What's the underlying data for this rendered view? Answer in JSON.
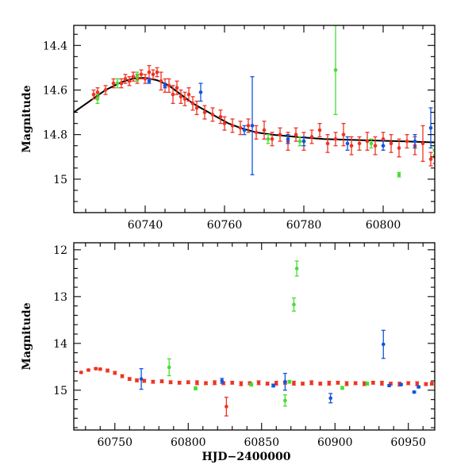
{
  "chart_data": [
    {
      "type": "scatter",
      "panel": "top",
      "title": "",
      "xlabel": "",
      "ylabel": "Magnitude",
      "xlim": [
        60722,
        60813
      ],
      "ylim": [
        15.15,
        14.31
      ],
      "x_ticks": [
        60740,
        60760,
        60780,
        60800
      ],
      "x_tick_labels": [
        "60740",
        "60760",
        "60780",
        "60800"
      ],
      "y_ticks": [
        14.4,
        14.6,
        14.8,
        15.0
      ],
      "y_tick_labels": [
        "14.4",
        "14.6",
        "14.8",
        "15"
      ],
      "colors": {
        "red": "#ee3322",
        "green": "#44dd33",
        "blue": "#1155dd",
        "model": "#000000"
      },
      "model_curve": {
        "name": "model",
        "x": [
          60722,
          60726,
          60730,
          60734,
          60737,
          60740,
          60743,
          60746,
          60749,
          60752,
          60755,
          60758,
          60761,
          60764,
          60768,
          60772,
          60778,
          60785,
          60795,
          60805,
          60813
        ],
        "y": [
          14.7,
          14.65,
          14.6,
          14.565,
          14.548,
          14.545,
          14.556,
          14.58,
          14.62,
          14.66,
          14.69,
          14.72,
          14.75,
          14.77,
          14.79,
          14.8,
          14.81,
          14.82,
          14.825,
          14.83,
          14.835
        ]
      },
      "series": [
        {
          "name": "red",
          "color": "red",
          "x": [
            60727,
            60728,
            60730,
            60732,
            60734,
            60735,
            60736,
            60737,
            60738,
            60739,
            60740,
            60741,
            60742,
            60743,
            60744,
            60745,
            60746,
            60747,
            60748,
            60749,
            60750,
            60751,
            60752,
            60753,
            60755,
            60757,
            60759,
            60760,
            60762,
            60764,
            60766,
            60768,
            60770,
            60772,
            60774,
            60776,
            60778,
            60780,
            60782,
            60784,
            60786,
            60788,
            60790,
            60792,
            60794,
            60796,
            60798,
            60800,
            60802,
            60804,
            60806,
            60808,
            60810,
            60812,
            60813
          ],
          "y": [
            14.62,
            14.61,
            14.6,
            14.57,
            14.57,
            14.55,
            14.56,
            14.54,
            14.55,
            14.53,
            14.55,
            14.52,
            14.53,
            14.52,
            14.56,
            14.58,
            14.58,
            14.62,
            14.59,
            14.63,
            14.64,
            14.62,
            14.66,
            14.68,
            14.7,
            14.71,
            14.72,
            14.75,
            14.76,
            14.77,
            14.76,
            14.79,
            14.78,
            14.82,
            14.8,
            14.83,
            14.8,
            14.83,
            14.81,
            14.78,
            14.84,
            14.82,
            14.8,
            14.85,
            14.84,
            14.83,
            14.85,
            14.82,
            14.84,
            14.86,
            14.83,
            14.85,
            14.84,
            14.91,
            14.9
          ],
          "err": [
            0.02,
            0.02,
            0.02,
            0.02,
            0.02,
            0.02,
            0.02,
            0.02,
            0.02,
            0.02,
            0.02,
            0.03,
            0.02,
            0.02,
            0.04,
            0.03,
            0.03,
            0.04,
            0.03,
            0.03,
            0.03,
            0.03,
            0.03,
            0.03,
            0.03,
            0.03,
            0.03,
            0.03,
            0.03,
            0.03,
            0.03,
            0.03,
            0.04,
            0.03,
            0.03,
            0.04,
            0.03,
            0.04,
            0.03,
            0.03,
            0.04,
            0.03,
            0.05,
            0.04,
            0.03,
            0.04,
            0.04,
            0.03,
            0.04,
            0.04,
            0.03,
            0.04,
            0.08,
            0.03,
            0.03
          ]
        },
        {
          "name": "green",
          "color": "green",
          "x": [
            60728,
            60733,
            60738,
            60771,
            60779,
            60788,
            60797,
            60804,
            60813
          ],
          "y": [
            14.64,
            14.57,
            14.54,
            14.82,
            14.83,
            14.51,
            14.84,
            14.98,
            14.87
          ],
          "err": [
            0.02,
            0.02,
            0.02,
            0.02,
            0.02,
            0.2,
            0.02,
            0.01,
            0.02
          ]
        },
        {
          "name": "blue",
          "color": "blue",
          "x": [
            60741,
            60745,
            60754,
            60765,
            60767,
            60776,
            60780,
            60791,
            60800,
            60808,
            60812
          ],
          "y": [
            14.56,
            14.58,
            14.61,
            14.78,
            14.76,
            14.82,
            14.83,
            14.84,
            14.85,
            14.83,
            14.77
          ],
          "err": [
            0.01,
            0.01,
            0.04,
            0.02,
            0.22,
            0.02,
            0.02,
            0.03,
            0.02,
            0.03,
            0.09
          ]
        }
      ]
    },
    {
      "type": "scatter",
      "panel": "bottom",
      "title": "",
      "xlabel": "HJD−2400000",
      "ylabel": "Magnitude",
      "xlim": [
        60722,
        60968
      ],
      "ylim": [
        15.85,
        11.85
      ],
      "x_ticks": [
        60750,
        60800,
        60850,
        60900,
        60950
      ],
      "x_tick_labels": [
        "60750",
        "60800",
        "60850",
        "60900",
        "60950"
      ],
      "y_ticks": [
        12,
        13,
        14,
        15
      ],
      "y_tick_labels": [
        "12",
        "13",
        "14",
        "15"
      ],
      "colors": {
        "red": "#ee3322",
        "green": "#44dd33",
        "blue": "#1155dd"
      },
      "series": [
        {
          "name": "red",
          "color": "red",
          "x": [
            60727,
            60732,
            60737,
            60740,
            60745,
            60750,
            60755,
            60760,
            60765,
            60770,
            60776,
            60782,
            60788,
            60794,
            60800,
            60806,
            60812,
            60818,
            60824,
            60826,
            60830,
            60836,
            60842,
            60848,
            60854,
            60860,
            60866,
            60872,
            60878,
            60884,
            60890,
            60896,
            60902,
            60908,
            60914,
            60920,
            60926,
            60932,
            60938,
            60944,
            60950,
            60956,
            60962,
            60966
          ],
          "y": [
            14.62,
            14.57,
            14.54,
            14.55,
            14.58,
            14.63,
            14.7,
            14.76,
            14.79,
            14.8,
            14.82,
            14.81,
            14.83,
            14.84,
            14.83,
            14.84,
            14.85,
            14.84,
            14.85,
            15.35,
            14.84,
            14.86,
            14.85,
            14.84,
            14.86,
            14.85,
            14.84,
            14.85,
            14.86,
            14.84,
            14.86,
            14.85,
            14.84,
            14.86,
            14.85,
            14.86,
            14.84,
            14.85,
            14.86,
            14.87,
            14.85,
            14.86,
            14.87,
            14.86
          ],
          "err": [
            0.02,
            0.02,
            0.02,
            0.02,
            0.03,
            0.03,
            0.03,
            0.03,
            0.03,
            0.03,
            0.03,
            0.03,
            0.03,
            0.03,
            0.03,
            0.04,
            0.03,
            0.04,
            0.03,
            0.2,
            0.03,
            0.04,
            0.03,
            0.04,
            0.03,
            0.04,
            0.03,
            0.04,
            0.03,
            0.04,
            0.03,
            0.04,
            0.03,
            0.04,
            0.03,
            0.04,
            0.03,
            0.04,
            0.03,
            0.04,
            0.03,
            0.04,
            0.03,
            0.03
          ]
        },
        {
          "name": "green",
          "color": "green",
          "x": [
            60787,
            60805,
            60843,
            60866,
            60869,
            60872,
            60874,
            60905,
            60922
          ],
          "y": [
            14.51,
            14.96,
            14.88,
            15.22,
            14.82,
            13.17,
            12.4,
            14.95,
            14.86
          ],
          "err": [
            0.18,
            0.03,
            0.03,
            0.12,
            0.03,
            0.14,
            0.16,
            0.03,
            0.03
          ]
        },
        {
          "name": "blue",
          "color": "blue",
          "x": [
            60768,
            60823,
            60858,
            60866,
            60897,
            60933,
            60937,
            60945,
            60954,
            60957
          ],
          "y": [
            14.76,
            14.8,
            14.9,
            14.82,
            15.17,
            14.02,
            14.9,
            14.88,
            15.04,
            14.93
          ],
          "err": [
            0.22,
            0.05,
            0.03,
            0.18,
            0.1,
            0.3,
            0.02,
            0.02,
            0.02,
            0.02
          ]
        }
      ]
    }
  ]
}
